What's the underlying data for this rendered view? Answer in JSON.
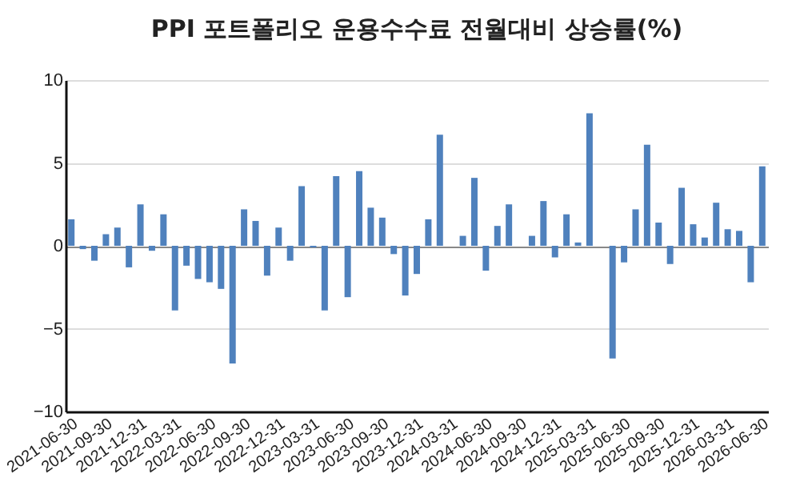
{
  "chart_data": {
    "type": "bar",
    "title": "PPI 포트폴리오 운용수수료 전월대비 상승률(%)",
    "categories": [
      "2021-06-30",
      null,
      null,
      "2021-09-30",
      null,
      null,
      "2021-12-31",
      null,
      null,
      "2022-03-31",
      null,
      null,
      "2022-06-30",
      null,
      null,
      "2022-09-30",
      null,
      null,
      "2022-12-31",
      null,
      null,
      "2023-03-31",
      null,
      null,
      "2023-06-30",
      null,
      null,
      "2023-09-30",
      null,
      null,
      "2023-12-31",
      null,
      null,
      "2024-03-31",
      null,
      null,
      "2024-06-30",
      null,
      null,
      "2024-09-30",
      null,
      null,
      "2024-12-31",
      null,
      null,
      "2025-03-31",
      null,
      null,
      "2025-06-30",
      null,
      null,
      "2025-09-30",
      null,
      null,
      "2025-12-31",
      null,
      null,
      "2026-03-31",
      null,
      null,
      "2026-06-30"
    ],
    "values": [
      1.6,
      -0.2,
      -0.9,
      0.7,
      1.1,
      -1.3,
      2.5,
      -0.3,
      1.9,
      -3.9,
      -1.2,
      -2.0,
      -2.2,
      -2.6,
      -7.1,
      2.2,
      1.5,
      -1.8,
      1.1,
      -0.9,
      3.6,
      -0.1,
      -3.9,
      4.2,
      -3.1,
      4.5,
      2.3,
      1.7,
      -0.5,
      -3.0,
      -1.7,
      1.6,
      6.7,
      0,
      0.6,
      4.1,
      -1.5,
      1.2,
      2.5,
      0,
      0.6,
      2.7,
      -0.7,
      1.9,
      0.2,
      8.0,
      0,
      -6.8,
      -1.0,
      2.2,
      6.1,
      1.4,
      -1.1,
      3.5,
      1.3,
      0.5,
      2.6,
      1.0,
      0.9,
      -2.2,
      4.8
    ],
    "color": "#4f81bd",
    "ylim": [
      -10,
      10
    ],
    "yticks": [
      -10,
      -5,
      0,
      5,
      10
    ],
    "grid": "y"
  }
}
